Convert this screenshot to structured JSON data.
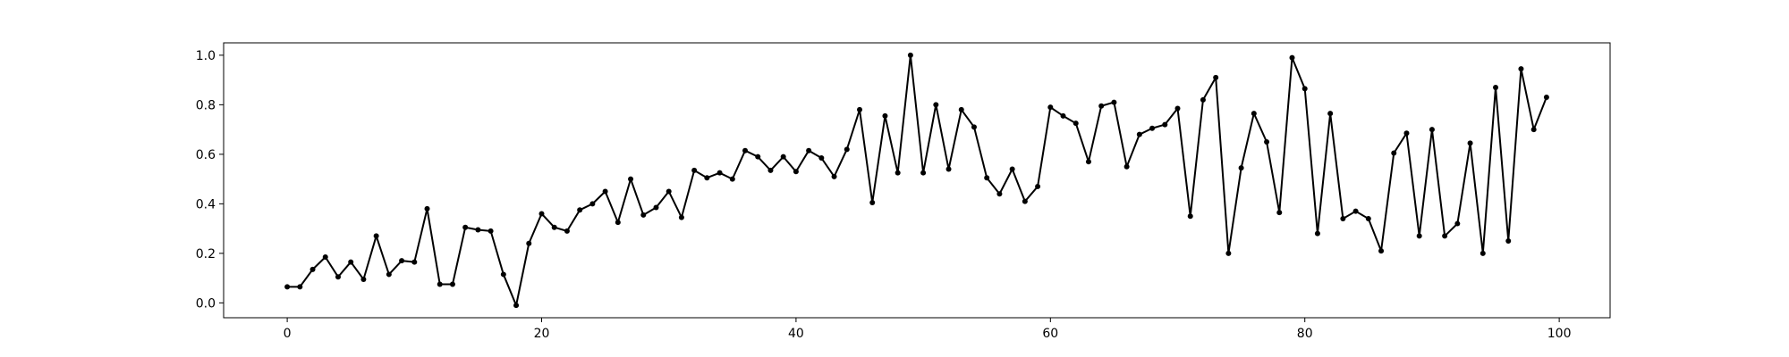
{
  "chart_data": {
    "type": "line",
    "title": "",
    "xlabel": "",
    "ylabel": "",
    "xlim": [
      -5,
      104
    ],
    "ylim": [
      -0.06,
      1.05
    ],
    "grid": false,
    "x_ticks": [
      0,
      20,
      40,
      60,
      80,
      100
    ],
    "y_ticks": [
      0.0,
      0.2,
      0.4,
      0.6,
      0.8,
      1.0
    ],
    "x_tick_labels": [
      "0",
      "20",
      "40",
      "60",
      "80",
      "100"
    ],
    "y_tick_labels": [
      "0.0",
      "0.2",
      "0.4",
      "0.6",
      "0.8",
      "1.0"
    ],
    "series": [
      {
        "color": "#000000",
        "marker": "circle",
        "x": [
          0,
          1,
          2,
          3,
          4,
          5,
          6,
          7,
          8,
          9,
          10,
          11,
          12,
          13,
          14,
          15,
          16,
          17,
          18,
          19,
          20,
          21,
          22,
          23,
          24,
          25,
          26,
          27,
          28,
          29,
          30,
          31,
          32,
          33,
          34,
          35,
          36,
          37,
          38,
          39,
          40,
          41,
          42,
          43,
          44,
          45,
          46,
          47,
          48,
          49,
          50,
          51,
          52,
          53,
          54,
          55,
          56,
          57,
          58,
          59,
          60,
          61,
          62,
          63,
          64,
          65,
          66,
          67,
          68,
          69,
          70,
          71,
          72,
          73,
          74,
          75,
          76,
          77,
          78,
          79,
          80,
          81,
          82,
          83,
          84,
          85,
          86,
          87,
          88,
          89,
          90,
          91,
          92,
          93,
          94,
          95,
          96,
          97,
          98,
          99
        ],
        "values": [
          0.065,
          0.065,
          0.135,
          0.185,
          0.105,
          0.165,
          0.095,
          0.27,
          0.115,
          0.17,
          0.165,
          0.38,
          0.075,
          0.075,
          0.305,
          0.295,
          0.29,
          0.115,
          -0.01,
          0.24,
          0.36,
          0.305,
          0.29,
          0.375,
          0.4,
          0.45,
          0.325,
          0.5,
          0.355,
          0.385,
          0.45,
          0.345,
          0.535,
          0.505,
          0.525,
          0.5,
          0.615,
          0.59,
          0.535,
          0.59,
          0.53,
          0.615,
          0.585,
          0.51,
          0.62,
          0.78,
          0.405,
          0.755,
          0.525,
          1.0,
          0.525,
          0.8,
          0.54,
          0.78,
          0.71,
          0.505,
          0.44,
          0.54,
          0.41,
          0.47,
          0.79,
          0.755,
          0.725,
          0.57,
          0.795,
          0.81,
          0.55,
          0.68,
          0.705,
          0.72,
          0.785,
          0.35,
          0.82,
          0.91,
          0.2,
          0.545,
          0.765,
          0.65,
          0.365,
          0.99,
          0.865,
          0.28,
          0.765,
          0.34,
          0.37,
          0.34,
          0.21,
          0.605,
          0.685,
          0.27,
          0.7,
          0.27,
          0.32,
          0.645,
          0.2,
          0.87,
          0.25,
          0.945,
          0.7,
          0.83
        ]
      }
    ]
  }
}
